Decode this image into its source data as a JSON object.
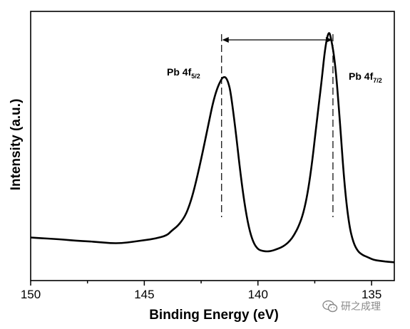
{
  "chart_data": {
    "type": "line",
    "xlabel": "Binding Energy (eV)",
    "ylabel": "Intensity (a.u.)",
    "xlim": [
      150,
      134
    ],
    "x_reversed": true,
    "ylim": [
      0,
      1
    ],
    "y_ticks_labeled": false,
    "x_ticks": [
      150,
      145,
      140,
      135
    ],
    "x_tick_labels": [
      "150",
      "145",
      "140",
      "135"
    ],
    "series": [
      {
        "x": [
          150,
          149.5,
          149,
          148.5,
          148,
          147.5,
          147,
          146.5,
          146,
          145.5,
          145,
          144.5,
          144,
          143.8,
          143.5,
          143.2,
          143,
          142.8,
          142.5,
          142.2,
          142,
          141.8,
          141.6,
          141.5,
          141.4,
          141.3,
          141.2,
          141,
          140.8,
          140.6,
          140.4,
          140.2,
          140,
          139.8,
          139.6,
          139.4,
          139.2,
          139,
          138.8,
          138.6,
          138.4,
          138.2,
          138,
          137.8,
          137.6,
          137.4,
          137.2,
          137.05,
          136.9,
          136.8,
          136.6,
          136.4,
          136.2,
          136,
          135.8,
          135.6,
          135.4,
          135.2,
          135,
          134.8,
          134.5,
          134.3,
          134
        ],
        "y": [
          0.16,
          0.157,
          0.155,
          0.152,
          0.148,
          0.146,
          0.143,
          0.139,
          0.139,
          0.144,
          0.15,
          0.156,
          0.168,
          0.185,
          0.205,
          0.24,
          0.282,
          0.34,
          0.45,
          0.57,
          0.654,
          0.714,
          0.75,
          0.757,
          0.754,
          0.735,
          0.7,
          0.57,
          0.42,
          0.29,
          0.195,
          0.14,
          0.116,
          0.11,
          0.108,
          0.11,
          0.116,
          0.122,
          0.132,
          0.147,
          0.17,
          0.203,
          0.25,
          0.33,
          0.45,
          0.6,
          0.74,
          0.862,
          0.926,
          0.91,
          0.81,
          0.6,
          0.36,
          0.21,
          0.14,
          0.108,
          0.095,
          0.088,
          0.08,
          0.075,
          0.072,
          0.07,
          0.068
        ]
      }
    ],
    "peaks": [
      {
        "label": "Pb 4f",
        "subscript": "5/2",
        "x": 141.6
      },
      {
        "label": "Pb 4f",
        "subscript": "7/2",
        "x": 136.7
      }
    ],
    "annotations": [
      "double-headed arrow between the two peak positions",
      "dashed vertical lines at each peak position"
    ],
    "grid": false,
    "legend": "none",
    "line_color": "#000000"
  },
  "watermark": {
    "text": "研之成理",
    "icon": "wechat-icon"
  }
}
